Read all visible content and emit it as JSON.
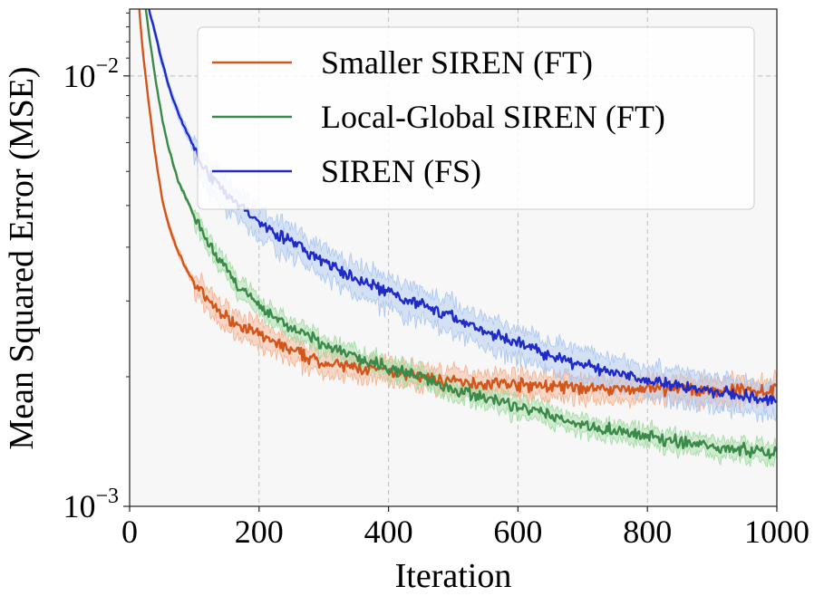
{
  "chart_data": {
    "type": "line",
    "title": "",
    "xlabel": "Iteration",
    "ylabel": "Mean Squared Error (MSE)",
    "xlim": [
      0,
      1000
    ],
    "ylim": [
      0.001,
      0.0143
    ],
    "yscale": "log",
    "grid": true,
    "legend_position": "top-right",
    "x_ticks": [
      0,
      200,
      400,
      600,
      800,
      1000
    ],
    "x_tick_labels": [
      "0",
      "200",
      "400",
      "600",
      "800",
      "1000"
    ],
    "y_ticks": [
      {
        "value": 0.01,
        "base": "10",
        "exp": "−2"
      },
      {
        "value": 0.001,
        "base": "10",
        "exp": "−3"
      }
    ],
    "series": [
      {
        "name": "Smaller SIREN (FT)",
        "color": "#d4551a",
        "band_color": "#f5b08c",
        "band_spread": 0.06,
        "x": [
          15,
          20,
          30,
          40,
          50,
          60,
          75,
          90,
          100,
          120,
          150,
          200,
          250,
          300,
          350,
          400,
          450,
          500,
          600,
          700,
          800,
          900,
          1000
        ],
        "y": [
          0.0143,
          0.0115,
          0.0085,
          0.0065,
          0.0052,
          0.0045,
          0.0039,
          0.0035,
          0.0033,
          0.003,
          0.00275,
          0.0025,
          0.0023,
          0.00215,
          0.0021,
          0.00205,
          0.002,
          0.00195,
          0.00192,
          0.00188,
          0.00187,
          0.00186,
          0.00186
        ]
      },
      {
        "name": "Local-Global SIREN (FT)",
        "color": "#3a8a4a",
        "band_color": "#9fdba0",
        "band_spread": 0.045,
        "x": [
          25,
          30,
          40,
          50,
          60,
          75,
          90,
          100,
          120,
          150,
          200,
          250,
          300,
          350,
          400,
          450,
          500,
          600,
          650,
          700,
          800,
          900,
          1000
        ],
        "y": [
          0.0143,
          0.0125,
          0.0098,
          0.008,
          0.0068,
          0.0057,
          0.0051,
          0.0047,
          0.0041,
          0.0035,
          0.0029,
          0.0026,
          0.00237,
          0.00222,
          0.0021,
          0.002,
          0.00188,
          0.0017,
          0.00162,
          0.00155,
          0.00145,
          0.00138,
          0.00133
        ]
      },
      {
        "name": "SIREN (FS)",
        "color": "#1f2bc8",
        "band_color": "#a9c6f2",
        "band_spread": 0.08,
        "x": [
          30,
          40,
          50,
          60,
          75,
          90,
          100,
          120,
          150,
          200,
          250,
          300,
          350,
          400,
          450,
          500,
          550,
          600,
          650,
          700,
          750,
          800,
          850,
          900,
          950,
          1000
        ],
        "y": [
          0.0143,
          0.0125,
          0.0108,
          0.0095,
          0.0082,
          0.0073,
          0.0068,
          0.006,
          0.0053,
          0.0046,
          0.0041,
          0.0037,
          0.00335,
          0.00315,
          0.00295,
          0.00275,
          0.00255,
          0.0024,
          0.00225,
          0.00212,
          0.00205,
          0.00198,
          0.0019,
          0.00185,
          0.0018,
          0.00175
        ]
      }
    ]
  }
}
